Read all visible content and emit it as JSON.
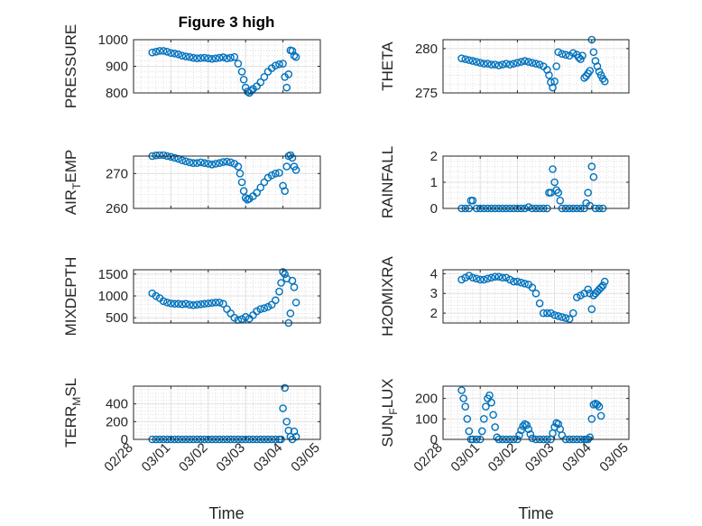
{
  "figure": {
    "title": "Figure 3 high",
    "x_tick_labels": [
      "02/28",
      "03/01",
      "03/02",
      "03/03",
      "03/04",
      "03/05"
    ],
    "xlabel": "Time",
    "marker_color": "#0072BD"
  },
  "chart_data": [
    {
      "type": "scatter",
      "ylabel": "PRESSURE",
      "xlim": [
        0,
        5
      ],
      "ylim": [
        800,
        1000
      ],
      "yticks": [
        800,
        900,
        1000
      ],
      "ytick_labels": [
        "800",
        "900",
        "1000"
      ],
      "show_x_tick_labels": false,
      "x": [
        0.5,
        0.6,
        0.7,
        0.8,
        0.9,
        1.0,
        1.1,
        1.2,
        1.3,
        1.4,
        1.5,
        1.6,
        1.7,
        1.8,
        1.9,
        2.0,
        2.1,
        2.2,
        2.3,
        2.4,
        2.5,
        2.6,
        2.7,
        2.8,
        2.9,
        2.95,
        3.0,
        3.05,
        3.1,
        3.15,
        3.2,
        3.3,
        3.4,
        3.5,
        3.6,
        3.7,
        3.8,
        3.9,
        4.0,
        4.05,
        4.1,
        4.15,
        4.2,
        4.25,
        4.3,
        4.35
      ],
      "y": [
        952,
        955,
        958,
        958,
        955,
        950,
        948,
        945,
        940,
        937,
        935,
        932,
        930,
        931,
        932,
        930,
        928,
        930,
        932,
        934,
        930,
        932,
        935,
        910,
        880,
        850,
        820,
        805,
        800,
        808,
        815,
        825,
        840,
        860,
        880,
        893,
        903,
        908,
        910,
        860,
        820,
        870,
        960,
        958,
        940,
        935
      ]
    },
    {
      "type": "scatter",
      "ylabel": "THETA",
      "xlim": [
        0,
        5
      ],
      "ylim": [
        275,
        281
      ],
      "yticks": [
        275,
        280
      ],
      "ytick_labels": [
        "275",
        "280"
      ],
      "show_x_tick_labels": false,
      "x": [
        0.5,
        0.6,
        0.7,
        0.8,
        0.9,
        1.0,
        1.1,
        1.2,
        1.3,
        1.4,
        1.5,
        1.6,
        1.7,
        1.8,
        1.9,
        2.0,
        2.1,
        2.2,
        2.3,
        2.4,
        2.5,
        2.6,
        2.7,
        2.8,
        2.85,
        2.9,
        2.95,
        3.0,
        3.05,
        3.1,
        3.2,
        3.3,
        3.4,
        3.5,
        3.6,
        3.65,
        3.7,
        3.75,
        3.8,
        3.85,
        3.9,
        3.95,
        4.0,
        4.05,
        4.1,
        4.15,
        4.2,
        4.25,
        4.3,
        4.35
      ],
      "y": [
        278.9,
        278.8,
        278.7,
        278.6,
        278.5,
        278.4,
        278.3,
        278.3,
        278.2,
        278.2,
        278.1,
        278.2,
        278.3,
        278.2,
        278.3,
        278.4,
        278.5,
        278.6,
        278.5,
        278.4,
        278.3,
        278.2,
        278.0,
        277.6,
        277.0,
        276.2,
        275.6,
        276.3,
        278.0,
        279.6,
        279.4,
        279.3,
        279.2,
        279.5,
        279.3,
        279.0,
        278.8,
        279.2,
        276.7,
        276.9,
        277.2,
        277.5,
        281.0,
        279.6,
        278.6,
        278.0,
        277.4,
        277.0,
        276.6,
        276.3
      ]
    },
    {
      "type": "scatter",
      "ylabel": "AIR_TEMP",
      "xlim": [
        0,
        5
      ],
      "ylim": [
        260,
        275
      ],
      "yticks": [
        260,
        270
      ],
      "ytick_labels": [
        "260",
        "270"
      ],
      "show_x_tick_labels": false,
      "x": [
        0.5,
        0.6,
        0.7,
        0.8,
        0.9,
        1.0,
        1.1,
        1.2,
        1.3,
        1.4,
        1.5,
        1.6,
        1.7,
        1.8,
        1.9,
        2.0,
        2.1,
        2.2,
        2.3,
        2.4,
        2.5,
        2.6,
        2.7,
        2.8,
        2.85,
        2.9,
        2.95,
        3.0,
        3.05,
        3.1,
        3.2,
        3.3,
        3.4,
        3.5,
        3.6,
        3.7,
        3.8,
        3.9,
        4.0,
        4.05,
        4.1,
        4.15,
        4.2,
        4.25,
        4.3,
        4.35
      ],
      "y": [
        275.0,
        275.2,
        275.3,
        275.3,
        275.0,
        274.8,
        274.5,
        274.2,
        273.8,
        273.5,
        273.2,
        273.0,
        273.0,
        273.2,
        273.0,
        272.8,
        272.6,
        272.8,
        273.0,
        273.3,
        273.4,
        273.2,
        272.8,
        272.0,
        270.0,
        267.5,
        265.0,
        263.0,
        262.5,
        262.8,
        263.5,
        264.5,
        266.0,
        267.5,
        268.8,
        269.5,
        270.0,
        270.2,
        266.5,
        265.0,
        272.0,
        275.0,
        275.3,
        274.5,
        272.0,
        271.0
      ]
    },
    {
      "type": "scatter",
      "ylabel": "RAINFALL",
      "xlim": [
        0,
        5
      ],
      "ylim": [
        0,
        2
      ],
      "yticks": [
        0,
        1,
        2
      ],
      "ytick_labels": [
        "0",
        "1",
        "2"
      ],
      "show_x_tick_labels": false,
      "x": [
        0.5,
        0.6,
        0.7,
        0.75,
        0.8,
        0.9,
        1.0,
        1.1,
        1.2,
        1.3,
        1.4,
        1.5,
        1.6,
        1.7,
        1.8,
        1.9,
        2.0,
        2.1,
        2.2,
        2.3,
        2.4,
        2.5,
        2.6,
        2.7,
        2.8,
        2.85,
        2.9,
        2.95,
        3.0,
        3.05,
        3.1,
        3.15,
        3.2,
        3.3,
        3.4,
        3.5,
        3.6,
        3.7,
        3.8,
        3.85,
        3.9,
        3.95,
        4.0,
        4.05,
        4.1,
        4.2,
        4.3
      ],
      "y": [
        0,
        0,
        0,
        0.3,
        0.3,
        0,
        0,
        0,
        0,
        0,
        0,
        0,
        0,
        0,
        0,
        0,
        0,
        0,
        0,
        0.05,
        0,
        0,
        0,
        0,
        0,
        0.6,
        0.6,
        1.5,
        1.0,
        0.7,
        0.6,
        0.3,
        0,
        0,
        0,
        0,
        0,
        0,
        0,
        0.2,
        0.6,
        0.1,
        1.6,
        1.2,
        0,
        0,
        0
      ]
    },
    {
      "type": "scatter",
      "ylabel": "MIXDEPTH",
      "xlim": [
        0,
        5
      ],
      "ylim": [
        380,
        1600
      ],
      "yticks": [
        500,
        1000,
        1500
      ],
      "ytick_labels": [
        "500",
        "1000",
        "1500"
      ],
      "show_x_tick_labels": false,
      "x": [
        0.5,
        0.6,
        0.7,
        0.8,
        0.9,
        1.0,
        1.1,
        1.2,
        1.3,
        1.4,
        1.5,
        1.6,
        1.7,
        1.8,
        1.9,
        2.0,
        2.1,
        2.2,
        2.3,
        2.4,
        2.5,
        2.6,
        2.7,
        2.8,
        2.9,
        3.0,
        3.1,
        3.2,
        3.3,
        3.4,
        3.5,
        3.6,
        3.7,
        3.8,
        3.9,
        3.95,
        4.0,
        4.05,
        4.1,
        4.15,
        4.2,
        4.25,
        4.3,
        4.35
      ],
      "y": [
        1060,
        1000,
        950,
        880,
        850,
        830,
        820,
        820,
        810,
        820,
        800,
        790,
        800,
        810,
        820,
        830,
        840,
        850,
        850,
        820,
        700,
        600,
        500,
        450,
        470,
        520,
        480,
        560,
        650,
        700,
        720,
        750,
        800,
        900,
        1100,
        1300,
        1550,
        1500,
        1400,
        380,
        600,
        1350,
        1200,
        850
      ]
    },
    {
      "type": "scatter",
      "ylabel": "H2OMIXRA",
      "xlim": [
        0,
        5
      ],
      "ylim": [
        1.5,
        4.2
      ],
      "yticks": [
        2,
        3,
        4
      ],
      "ytick_labels": [
        "2",
        "3",
        "4"
      ],
      "show_x_tick_labels": false,
      "x": [
        0.5,
        0.6,
        0.7,
        0.8,
        0.9,
        1.0,
        1.1,
        1.2,
        1.3,
        1.4,
        1.5,
        1.6,
        1.7,
        1.8,
        1.9,
        2.0,
        2.1,
        2.2,
        2.3,
        2.4,
        2.5,
        2.6,
        2.7,
        2.8,
        2.9,
        3.0,
        3.1,
        3.2,
        3.3,
        3.4,
        3.5,
        3.6,
        3.7,
        3.8,
        3.9,
        3.95,
        4.0,
        4.05,
        4.1,
        4.15,
        4.2,
        4.25,
        4.3,
        4.35
      ],
      "y": [
        3.7,
        3.8,
        3.9,
        3.8,
        3.75,
        3.7,
        3.7,
        3.75,
        3.8,
        3.85,
        3.85,
        3.8,
        3.8,
        3.7,
        3.6,
        3.6,
        3.55,
        3.5,
        3.45,
        3.3,
        3.0,
        2.5,
        2.0,
        2.0,
        2.0,
        1.9,
        1.85,
        1.8,
        1.75,
        1.7,
        2.0,
        2.8,
        2.9,
        3.0,
        3.2,
        3.0,
        2.2,
        2.9,
        3.0,
        3.1,
        3.2,
        3.3,
        3.4,
        3.6
      ]
    },
    {
      "type": "scatter",
      "ylabel": "TERR_MSL",
      "xlim": [
        0,
        5
      ],
      "ylim": [
        0,
        600
      ],
      "yticks": [
        0,
        200,
        400
      ],
      "ytick_labels": [
        "0",
        "200",
        "400"
      ],
      "show_x_tick_labels": true,
      "x": [
        0.5,
        0.6,
        0.7,
        0.8,
        0.9,
        1.0,
        1.1,
        1.2,
        1.3,
        1.4,
        1.5,
        1.6,
        1.7,
        1.8,
        1.9,
        2.0,
        2.1,
        2.2,
        2.3,
        2.4,
        2.5,
        2.6,
        2.7,
        2.8,
        2.9,
        3.0,
        3.1,
        3.2,
        3.3,
        3.4,
        3.5,
        3.6,
        3.7,
        3.8,
        3.9,
        3.95,
        4.0,
        4.05,
        4.1,
        4.15,
        4.2,
        4.25,
        4.3,
        4.35
      ],
      "y": [
        0,
        0,
        0,
        0,
        0,
        0,
        0,
        0,
        0,
        0,
        0,
        0,
        0,
        0,
        0,
        0,
        0,
        0,
        0,
        0,
        0,
        0,
        0,
        0,
        0,
        0,
        0,
        0,
        0,
        0,
        0,
        0,
        0,
        0,
        0,
        0,
        350,
        580,
        200,
        100,
        30,
        0,
        90,
        30
      ]
    },
    {
      "type": "scatter",
      "ylabel": "SUN_FLUX",
      "xlim": [
        0,
        5
      ],
      "ylim": [
        0,
        260
      ],
      "yticks": [
        0,
        100,
        200
      ],
      "ytick_labels": [
        "0",
        "100",
        "200"
      ],
      "show_x_tick_labels": true,
      "x": [
        0.5,
        0.55,
        0.6,
        0.65,
        0.7,
        0.75,
        0.8,
        0.9,
        1.0,
        1.05,
        1.1,
        1.15,
        1.2,
        1.25,
        1.3,
        1.35,
        1.4,
        1.45,
        1.5,
        1.6,
        1.7,
        1.8,
        1.9,
        2.0,
        2.05,
        2.1,
        2.15,
        2.2,
        2.25,
        2.3,
        2.35,
        2.4,
        2.5,
        2.6,
        2.7,
        2.8,
        2.9,
        2.95,
        3.0,
        3.05,
        3.1,
        3.15,
        3.2,
        3.3,
        3.4,
        3.5,
        3.6,
        3.7,
        3.8,
        3.85,
        3.9,
        3.95,
        4.0,
        4.05,
        4.1,
        4.15,
        4.2,
        4.25
      ],
      "y": [
        240,
        200,
        160,
        100,
        40,
        0,
        0,
        0,
        0,
        40,
        100,
        160,
        200,
        215,
        180,
        120,
        60,
        10,
        0,
        0,
        0,
        0,
        0,
        0,
        20,
        45,
        65,
        75,
        70,
        50,
        25,
        5,
        0,
        0,
        0,
        0,
        0,
        30,
        60,
        80,
        75,
        50,
        20,
        0,
        0,
        0,
        0,
        0,
        0,
        0,
        0,
        10,
        100,
        170,
        175,
        170,
        160,
        115
      ]
    }
  ]
}
